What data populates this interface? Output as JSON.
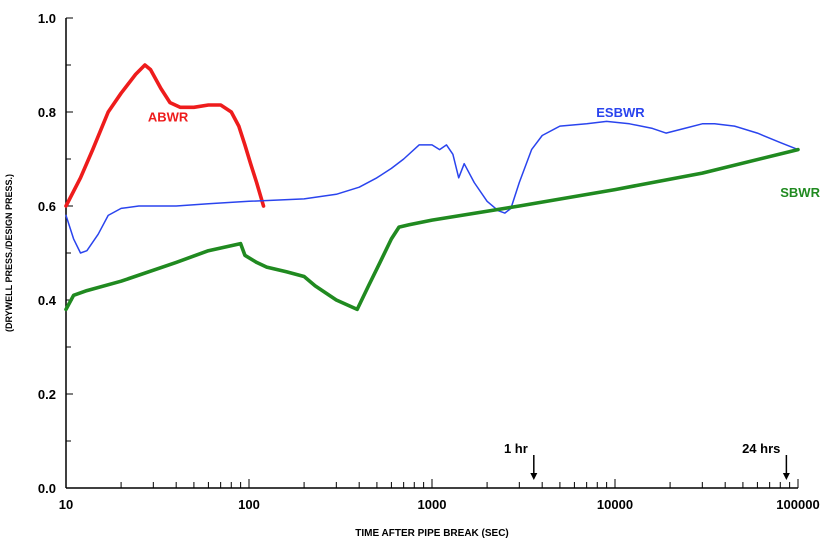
{
  "chart_data": {
    "type": "line",
    "title": "",
    "xlabel": "TIME AFTER PIPE BREAK (SEC)",
    "ylabel": "(DRYWELL PRESS./DESIGN PRESS.)",
    "xscale": "log",
    "xlim": [
      10,
      100000
    ],
    "ylim": [
      0.0,
      1.0
    ],
    "x_ticks": [
      10,
      100,
      1000,
      10000,
      100000
    ],
    "x_tick_labels": [
      "10",
      "100",
      "1000",
      "10000",
      "100000"
    ],
    "y_ticks": [
      0.0,
      0.2,
      0.4,
      0.6,
      0.8,
      1.0
    ],
    "y_tick_labels": [
      "0.0",
      "0.2",
      "0.4",
      "0.6",
      "0.8",
      "1.0"
    ],
    "grid": false,
    "annotations": [
      {
        "label": "1 hr",
        "x": 3600
      },
      {
        "label": "24 hrs",
        "x": 86400
      }
    ],
    "series": [
      {
        "name": "ABWR",
        "color": "#ee1c1c",
        "label_at": [
          28,
          0.79
        ],
        "points": [
          [
            10,
            0.6
          ],
          [
            12,
            0.66
          ],
          [
            14,
            0.72
          ],
          [
            17,
            0.8
          ],
          [
            20,
            0.84
          ],
          [
            24,
            0.88
          ],
          [
            27,
            0.9
          ],
          [
            29,
            0.89
          ],
          [
            33,
            0.85
          ],
          [
            37,
            0.82
          ],
          [
            42,
            0.81
          ],
          [
            50,
            0.81
          ],
          [
            60,
            0.815
          ],
          [
            70,
            0.815
          ],
          [
            80,
            0.8
          ],
          [
            88,
            0.77
          ],
          [
            95,
            0.73
          ],
          [
            102,
            0.69
          ],
          [
            110,
            0.65
          ],
          [
            120,
            0.6
          ]
        ]
      },
      {
        "name": "ESBWR",
        "color": "#2a44ee",
        "label_at": [
          7900,
          0.8
        ],
        "points": [
          [
            10,
            0.58
          ],
          [
            11,
            0.53
          ],
          [
            12,
            0.5
          ],
          [
            13,
            0.505
          ],
          [
            15,
            0.54
          ],
          [
            17,
            0.58
          ],
          [
            20,
            0.595
          ],
          [
            25,
            0.6
          ],
          [
            40,
            0.6
          ],
          [
            60,
            0.605
          ],
          [
            100,
            0.61
          ],
          [
            200,
            0.615
          ],
          [
            300,
            0.625
          ],
          [
            400,
            0.64
          ],
          [
            500,
            0.66
          ],
          [
            600,
            0.68
          ],
          [
            700,
            0.7
          ],
          [
            850,
            0.73
          ],
          [
            1000,
            0.73
          ],
          [
            1100,
            0.72
          ],
          [
            1200,
            0.73
          ],
          [
            1300,
            0.71
          ],
          [
            1400,
            0.66
          ],
          [
            1500,
            0.69
          ],
          [
            1700,
            0.65
          ],
          [
            2000,
            0.61
          ],
          [
            2300,
            0.59
          ],
          [
            2500,
            0.585
          ],
          [
            2700,
            0.595
          ],
          [
            3000,
            0.65
          ],
          [
            3500,
            0.72
          ],
          [
            4000,
            0.75
          ],
          [
            5000,
            0.77
          ],
          [
            7000,
            0.775
          ],
          [
            9000,
            0.78
          ],
          [
            12000,
            0.775
          ],
          [
            16000,
            0.765
          ],
          [
            19000,
            0.755
          ],
          [
            24000,
            0.765
          ],
          [
            30000,
            0.775
          ],
          [
            35000,
            0.775
          ],
          [
            45000,
            0.77
          ],
          [
            60000,
            0.755
          ],
          [
            80000,
            0.735
          ],
          [
            100000,
            0.72
          ]
        ]
      },
      {
        "name": "SBWR",
        "color": "#208a20",
        "label_at": [
          80000,
          0.63
        ],
        "points": [
          [
            10,
            0.38
          ],
          [
            11,
            0.41
          ],
          [
            13,
            0.42
          ],
          [
            20,
            0.44
          ],
          [
            40,
            0.48
          ],
          [
            60,
            0.505
          ],
          [
            90,
            0.52
          ],
          [
            95,
            0.495
          ],
          [
            110,
            0.48
          ],
          [
            125,
            0.47
          ],
          [
            160,
            0.46
          ],
          [
            200,
            0.45
          ],
          [
            230,
            0.43
          ],
          [
            300,
            0.4
          ],
          [
            390,
            0.38
          ],
          [
            450,
            0.43
          ],
          [
            520,
            0.48
          ],
          [
            600,
            0.53
          ],
          [
            660,
            0.555
          ],
          [
            750,
            0.56
          ],
          [
            1000,
            0.57
          ],
          [
            3000,
            0.6
          ],
          [
            10000,
            0.635
          ],
          [
            30000,
            0.67
          ],
          [
            100000,
            0.72
          ]
        ]
      }
    ]
  }
}
